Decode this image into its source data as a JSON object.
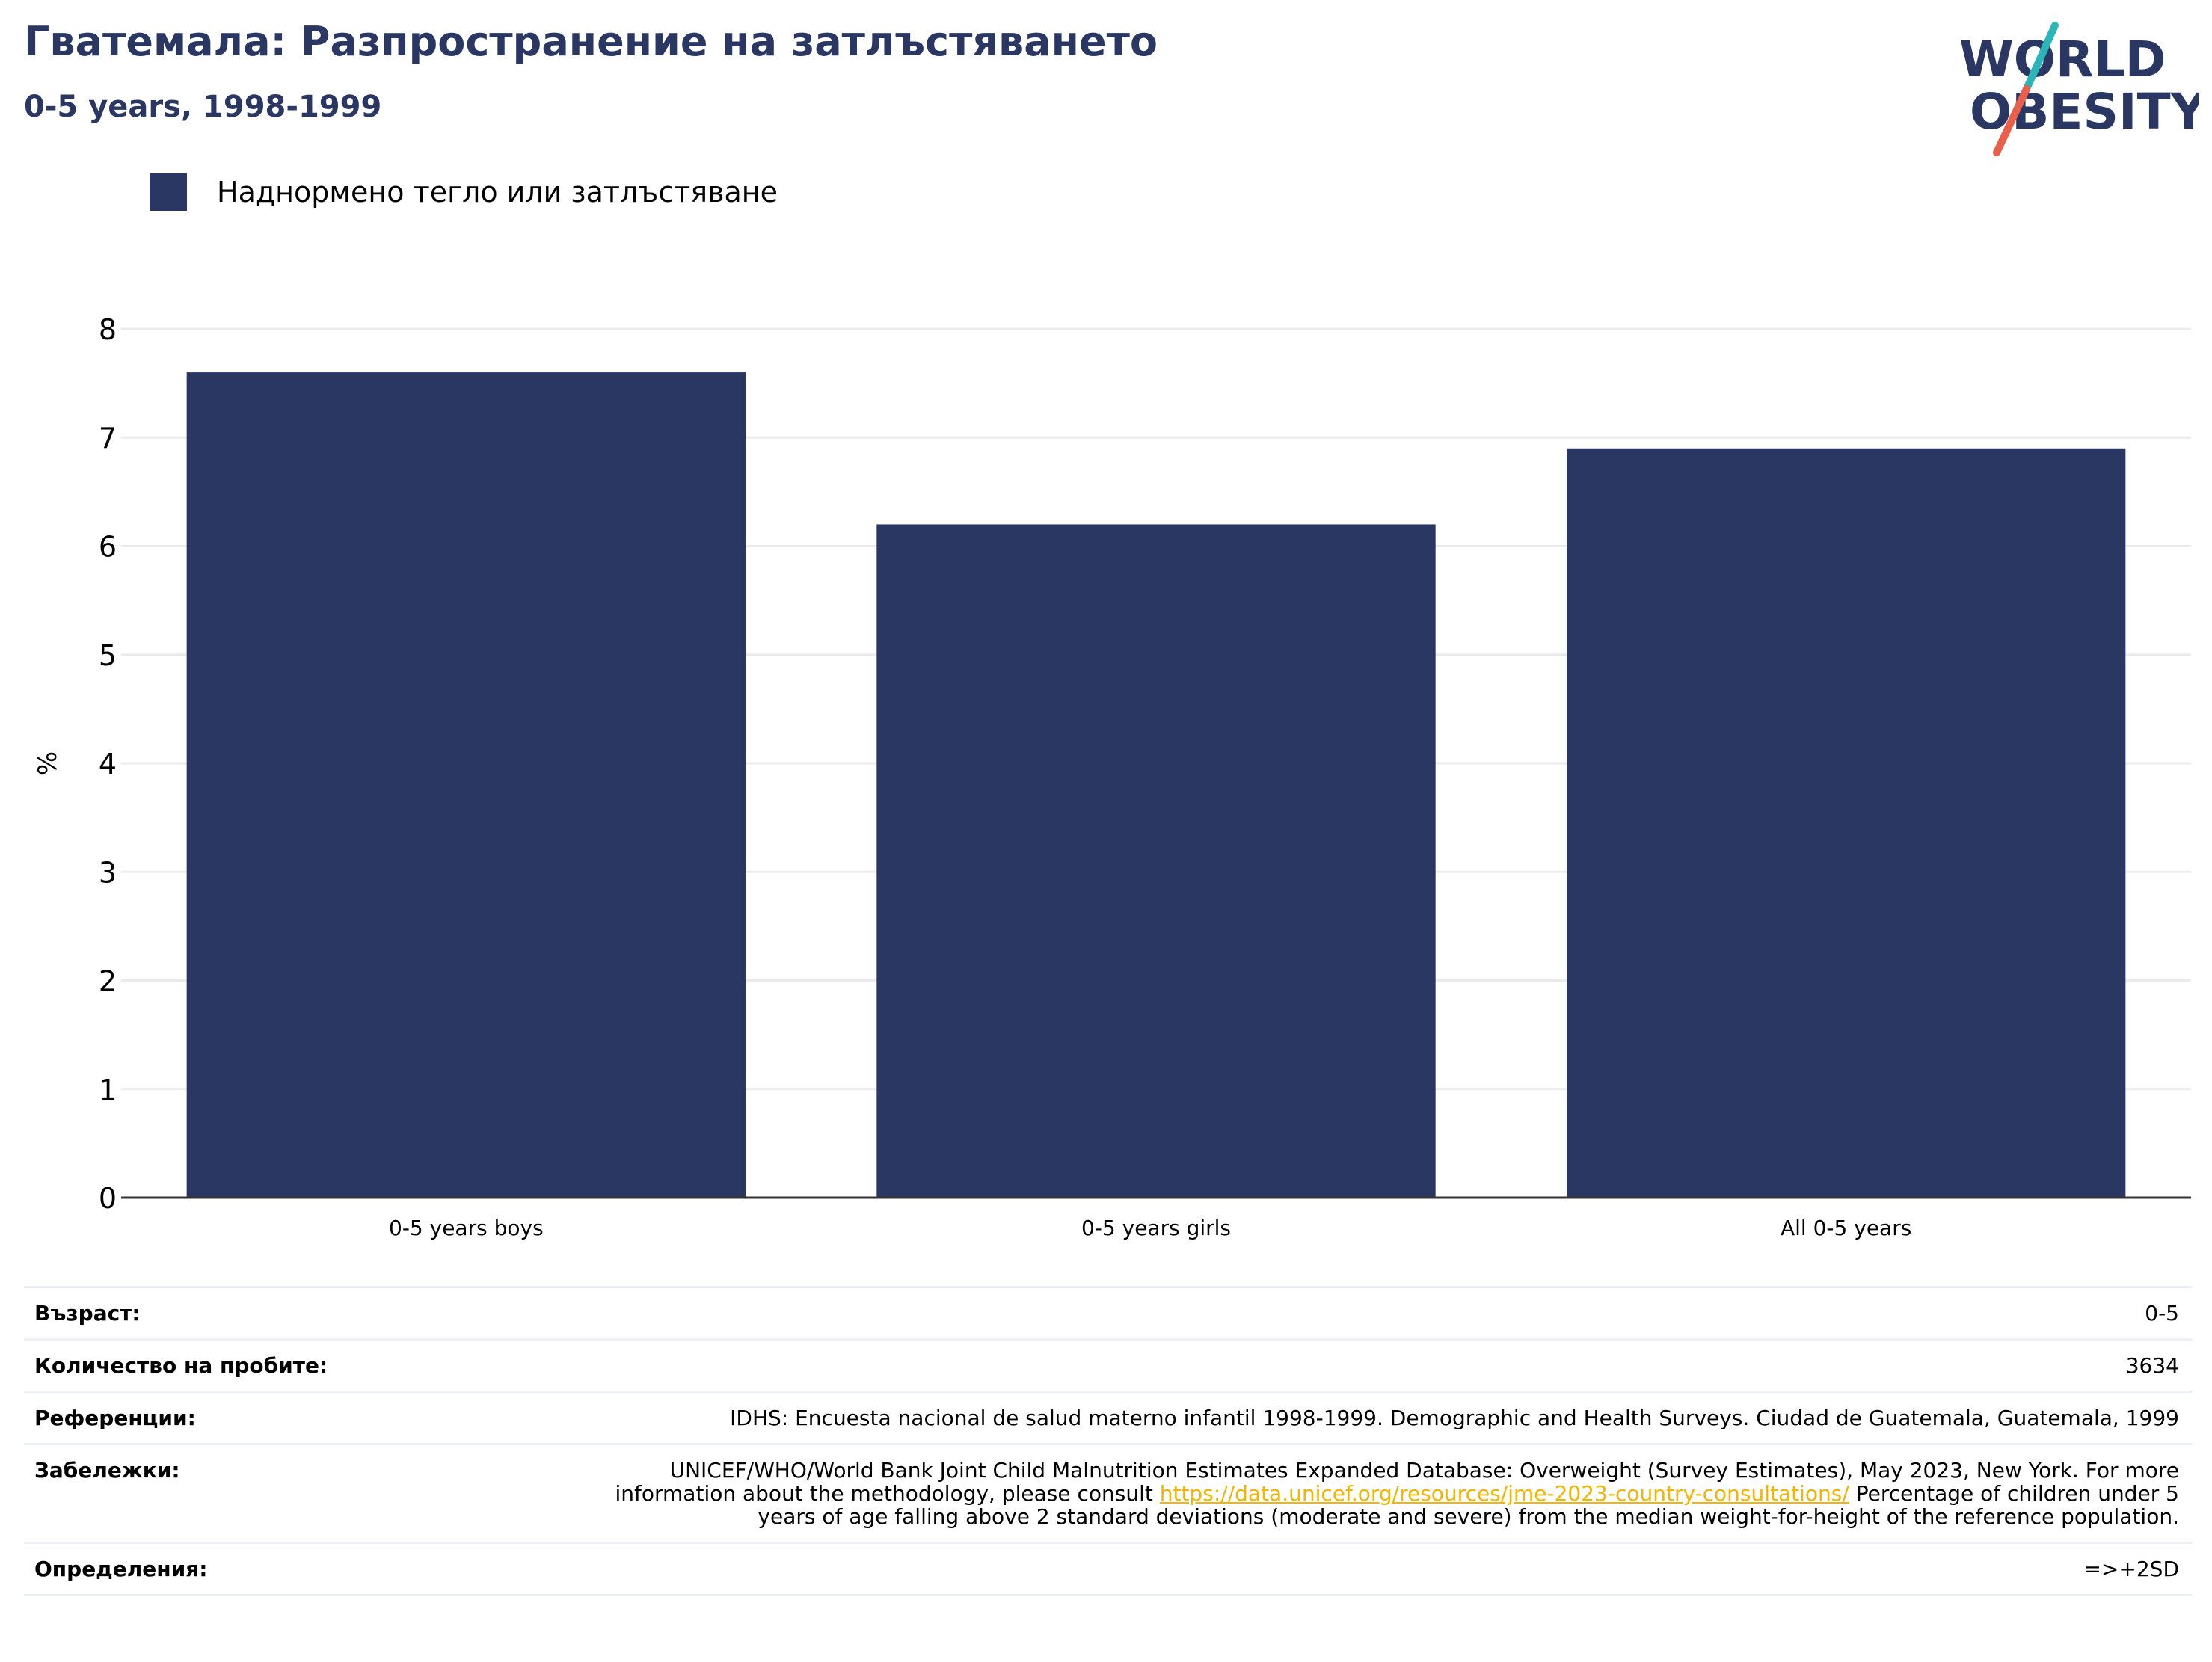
{
  "header": {
    "title": "Гватемала: Разпространение на затлъстяването",
    "subtitle": "0-5 years, 1998-1999"
  },
  "logo": {
    "line1": "WORLD",
    "line2": "OBESITY",
    "colors": {
      "text": "#2b3763",
      "slash_top": "#2bb5b8",
      "slash_bottom": "#e8604c"
    }
  },
  "colors": {
    "bar": "#2b3763",
    "grid": "#ebebeb",
    "axis": "#333333"
  },
  "chart_data": {
    "type": "bar",
    "categories": [
      "0-5 years boys",
      "0-5 years girls",
      "All 0-5 years"
    ],
    "series": [
      {
        "name": "Наднормено тегло или затлъстяване",
        "values": [
          7.6,
          6.2,
          6.9
        ]
      }
    ],
    "ylabel": "%",
    "xlabel": "",
    "ylim": [
      0,
      8
    ],
    "yticks": [
      0,
      1,
      2,
      3,
      4,
      5,
      6,
      7,
      8
    ],
    "grid": true,
    "legend": "top-left"
  },
  "info": {
    "age_label": "Възраст:",
    "age_value": "0-5",
    "sample_label": "Количество на пробите:",
    "sample_value": "3634",
    "refs_label": "Референции:",
    "refs_value": "IDHS: Encuesta nacional de salud materno infantil 1998-1999. Demographic and Health Surveys. Ciudad de Guatemala, Guatemala, 1999",
    "notes_label": "Забележки:",
    "notes_pre": "UNICEF/WHO/World Bank Joint Child Malnutrition Estimates Expanded Database: Overweight (Survey Estimates), May 2023, New York. For more information about the methodology, please consult",
    "notes_link": "https://data.unicef.org/resources/jme-2023-country-consultations/",
    "notes_post": "Percentage of children under 5 years of age falling above 2 standard deviations (moderate and severe) from the median weight-for-height of the reference population.",
    "defs_label": "Определения:",
    "defs_value": "=>+2SD"
  }
}
